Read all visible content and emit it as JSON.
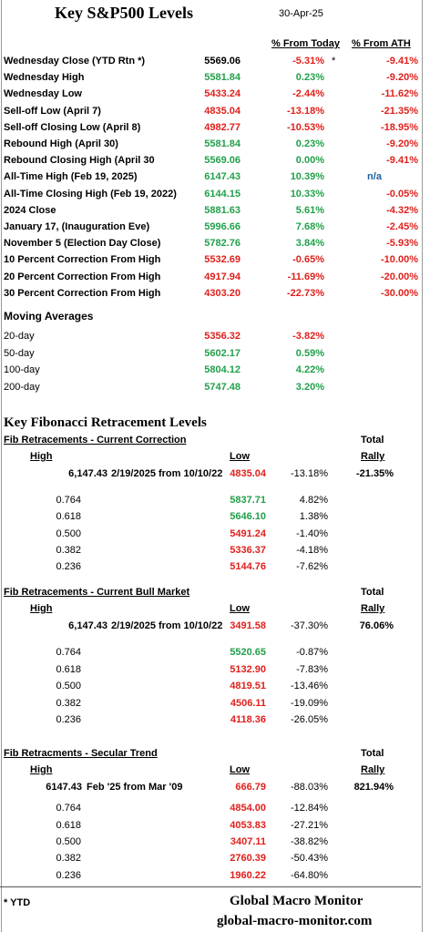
{
  "header": {
    "title": "Key S&P500 Levels",
    "date": "30-Apr-25",
    "col_today": "% From Today",
    "col_ath": "% From ATH"
  },
  "levels": [
    {
      "label": "Wednesday Close (YTD Rtn *)",
      "value": "5569.06",
      "from_today": "-5.31%",
      "note": "*",
      "from_ath": "-9.41%"
    },
    {
      "label": "Wednesday High",
      "value": "5581.84",
      "from_today": "0.23%",
      "from_ath": "-9.20%"
    },
    {
      "label": "Wednesday Low",
      "value": "5433.24",
      "from_today": "-2.44%",
      "from_ath": "-11.62%"
    },
    {
      "label": "Sell-off Low (April 7)",
      "value": "4835.04",
      "from_today": "-13.18%",
      "from_ath": "-21.35%"
    },
    {
      "label": "Sell-off Closing Low (April 8)",
      "value": "4982.77",
      "from_today": "-10.53%",
      "from_ath": "-18.95%"
    },
    {
      "label": "Rebound High (April 30)",
      "value": "5581.84",
      "from_today": "0.23%",
      "from_ath": "-9.20%"
    },
    {
      "label": "Rebound Closing High (April 30",
      "value": "5569.06",
      "from_today": "0.00%",
      "from_ath": "-9.41%"
    },
    {
      "label": "All-Time High (Feb 19, 2025)",
      "value": "6147.43",
      "from_today": "10.39%",
      "from_ath": "n/a"
    },
    {
      "label": "All-Time Closing High (Feb 19, 2022)",
      "value": "6144.15",
      "from_today": "10.33%",
      "from_ath": "-0.05%"
    },
    {
      "label": "2024 Close",
      "value": "5881.63",
      "from_today": "5.61%",
      "from_ath": "-4.32%"
    },
    {
      "label": "January 17, (Inauguration Eve)",
      "value": "5996.66",
      "from_today": "7.68%",
      "from_ath": "-2.45%"
    },
    {
      "label": "November 5 (Election Day Close)",
      "value": "5782.76",
      "from_today": "3.84%",
      "from_ath": "-5.93%"
    },
    {
      "label": "10 Percent Correction From High",
      "value": "5532.69",
      "from_today": "-0.65%",
      "from_ath": "-10.00%"
    },
    {
      "label": "20 Percent Correction From High",
      "value": "4917.94",
      "from_today": "-11.69%",
      "from_ath": "-20.00%"
    },
    {
      "label": "30 Percent Correction From High",
      "value": "4303.20",
      "from_today": "-22.73%",
      "from_ath": "-30.00%"
    }
  ],
  "moving_averages": {
    "title": "Moving Averages",
    "rows": [
      {
        "label": "20-day",
        "value": "5356.32",
        "from_today": "-3.82%"
      },
      {
        "label": "50-day",
        "value": "5602.17",
        "from_today": "0.59%"
      },
      {
        "label": "100-day",
        "value": "5804.12",
        "from_today": "4.22%"
      },
      {
        "label": "200-day",
        "value": "5747.48",
        "from_today": "3.20%"
      }
    ]
  },
  "fibonacci": {
    "title": "Key Fibonacci Retracement Levels",
    "sections": [
      {
        "title": "Fib Retracements - Current Correction",
        "total_label": "Total",
        "high_label": "High",
        "low_label": "Low",
        "rally_label": "Rally",
        "high": "6,147.43",
        "period": "2/19/2025 from 10/10/22",
        "low": "4835.04",
        "change": "-13.18%",
        "rally": "-21.35%",
        "levels": [
          {
            "ratio": "0.764",
            "value": "5837.71",
            "change": "4.82%"
          },
          {
            "ratio": "0.618",
            "value": "5646.10",
            "change": "1.38%"
          },
          {
            "ratio": "0.500",
            "value": "5491.24",
            "change": "-1.40%"
          },
          {
            "ratio": "0.382",
            "value": "5336.37",
            "change": "-4.18%"
          },
          {
            "ratio": "0.236",
            "value": "5144.76",
            "change": "-7.62%"
          }
        ]
      },
      {
        "title": "Fib Retracements - Current Bull Market",
        "total_label": "Total",
        "high_label": "High",
        "low_label": "Low",
        "rally_label": "Rally",
        "high": "6,147.43",
        "period": "2/19/2025 from 10/10/22",
        "low": "3491.58",
        "change": "-37.30%",
        "rally": "76.06%",
        "levels": [
          {
            "ratio": "0.764",
            "value": "5520.65",
            "change": "-0.87%"
          },
          {
            "ratio": "0.618",
            "value": "5132.90",
            "change": "-7.83%"
          },
          {
            "ratio": "0.500",
            "value": "4819.51",
            "change": "-13.46%"
          },
          {
            "ratio": "0.382",
            "value": "4506.11",
            "change": "-19.09%"
          },
          {
            "ratio": "0.236",
            "value": "4118.36",
            "change": "-26.05%"
          }
        ]
      },
      {
        "title": "Fib Retracments - Secular Trend",
        "total_label": "Total",
        "high_label": "High",
        "low_label": "Low",
        "rally_label": "Rally",
        "high": "6147.43",
        "period": "Feb '25 from Mar '09",
        "low": "666.79",
        "change": "-88.03%",
        "rally": "821.94%",
        "levels": [
          {
            "ratio": "0.764",
            "value": "4854.00",
            "change": "-12.84%"
          },
          {
            "ratio": "0.618",
            "value": "4053.83",
            "change": "-27.21%"
          },
          {
            "ratio": "0.500",
            "value": "3407.11",
            "change": "-38.82%"
          },
          {
            "ratio": "0.382",
            "value": "2760.39",
            "change": "-50.43%"
          },
          {
            "ratio": "0.236",
            "value": "1960.22",
            "change": "-64.80%"
          }
        ]
      }
    ]
  },
  "footer": {
    "note": "* YTD",
    "brand": "Global Macro Monitor",
    "url": "global-macro-monitor.com"
  }
}
